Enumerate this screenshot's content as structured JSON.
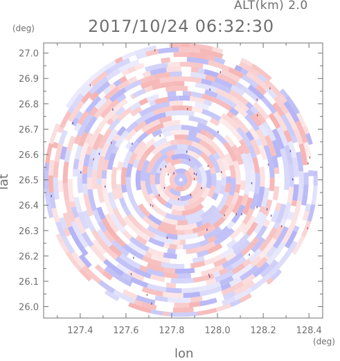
{
  "header": {
    "altitude": "ALT(km) 2.0",
    "timestamp": "2017/10/24 06:32:30"
  },
  "chart_data": {
    "type": "heatmap",
    "title": "2017/10/24 06:32:30",
    "subtitle": "ALT(km) 2.0",
    "xlabel": "lon",
    "ylabel": "lat",
    "x_unit": "(deg)",
    "y_unit": "(deg)",
    "xlim": [
      127.24,
      128.46
    ],
    "ylim": [
      25.955,
      27.04
    ],
    "xticks": [
      127.4,
      127.6,
      127.8,
      128.0,
      128.2,
      128.4
    ],
    "xtick_labels": [
      "127.4",
      "127.6",
      "127.8",
      "128.0",
      "128.2",
      "128.4"
    ],
    "yticks": [
      26.0,
      26.1,
      26.2,
      26.3,
      26.4,
      26.5,
      26.6,
      26.7,
      26.8,
      26.9,
      27.0
    ],
    "ytick_labels": [
      "26.0",
      "26.1",
      "26.2",
      "26.3",
      "26.4",
      "26.5",
      "26.6",
      "26.7",
      "26.8",
      "26.9",
      "27.0"
    ],
    "center": {
      "lon": 127.84,
      "lat": 26.5
    },
    "radius_deg_lat": 0.54,
    "grid": false,
    "colors": {
      "positive": "#f08080",
      "negative": "#8080f0",
      "neutral": "#ffffff",
      "axis": "#6f6f6f"
    }
  }
}
